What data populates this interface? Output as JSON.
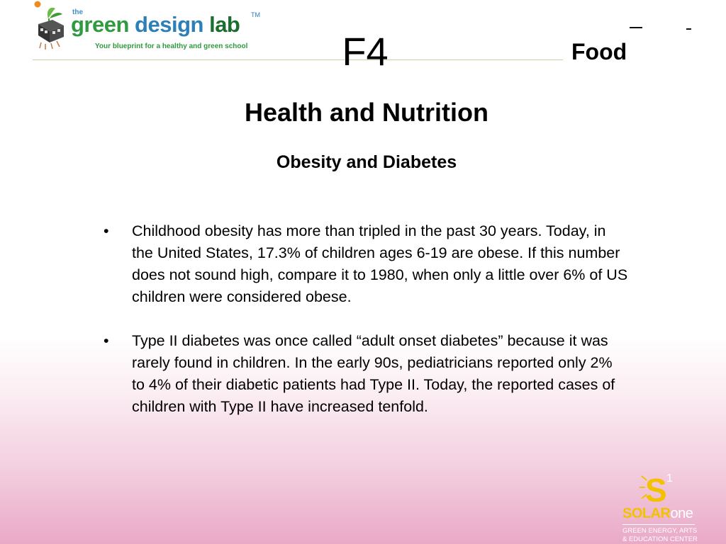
{
  "logo": {
    "the": "the",
    "word_green": "green",
    "word_design": "design",
    "word_lab": "lab",
    "tm": "TM",
    "tagline": "Your blueprint for a healthy and green school"
  },
  "header": {
    "code": "F4",
    "section": "Food"
  },
  "title": "Health and Nutrition",
  "subtitle": "Obesity and Diabetes",
  "bullets": [
    {
      "marker": "•",
      "text": "Childhood obesity has more than tripled in the past 30 years. Today, in the United States, 17.3% of children ages 6-19 are obese. If this number does not sound high, compare it to 1980, when only a little over 6% of US children were considered obese."
    },
    {
      "marker": "•",
      "text": "Type II diabetes was once called “adult onset diabetes” because it was rarely found in children. In the early 90s, pediatricians reported only 2% to 4% of their diabetic patients had Type II. Today, the reported cases of children with Type II have increased tenfold."
    }
  ],
  "solar_one": {
    "badge_mark": "S",
    "badge_sup": "1",
    "solar": "SOLAR",
    "one": "one",
    "sub_line1": "GREEN ENERGY, ARTS",
    "sub_line2": "& EDUCATION CENTER"
  },
  "colors": {
    "logo_green": "#2f9a3f",
    "logo_blue": "#2d7fb8",
    "solar_yellow": "#f2c200",
    "gradient_pink": "#e9a9c8"
  }
}
